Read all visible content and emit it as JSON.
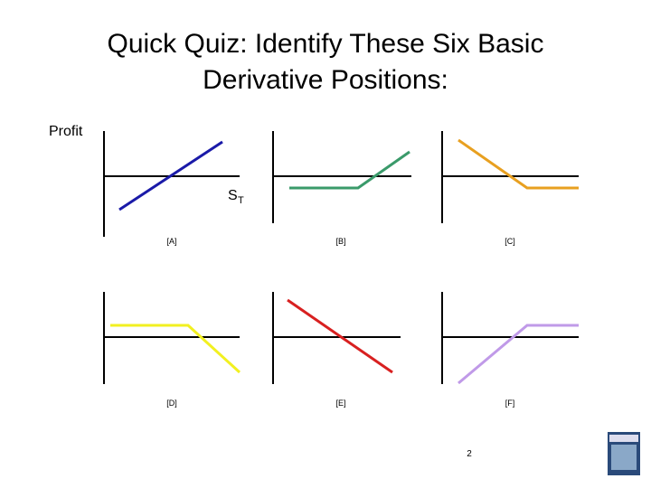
{
  "title_lines": [
    "Quick Quiz:  Identify These Six Basic",
    "Derivative Positions:"
  ],
  "y_axis_label": "Profit",
  "x_axis_label": {
    "main": "S",
    "subscript": "T"
  },
  "panels": [
    {
      "label": "[A]",
      "color": "#1a1aa8"
    },
    {
      "label": "[B]",
      "color": "#3a9a6a"
    },
    {
      "label": "[C]",
      "color": "#e8a020"
    },
    {
      "label": "[D]",
      "color": "#f2f020"
    },
    {
      "label": "[E]",
      "color": "#d82020"
    },
    {
      "label": "[F]",
      "color": "#c09ae8"
    }
  ],
  "page_number": "2"
}
